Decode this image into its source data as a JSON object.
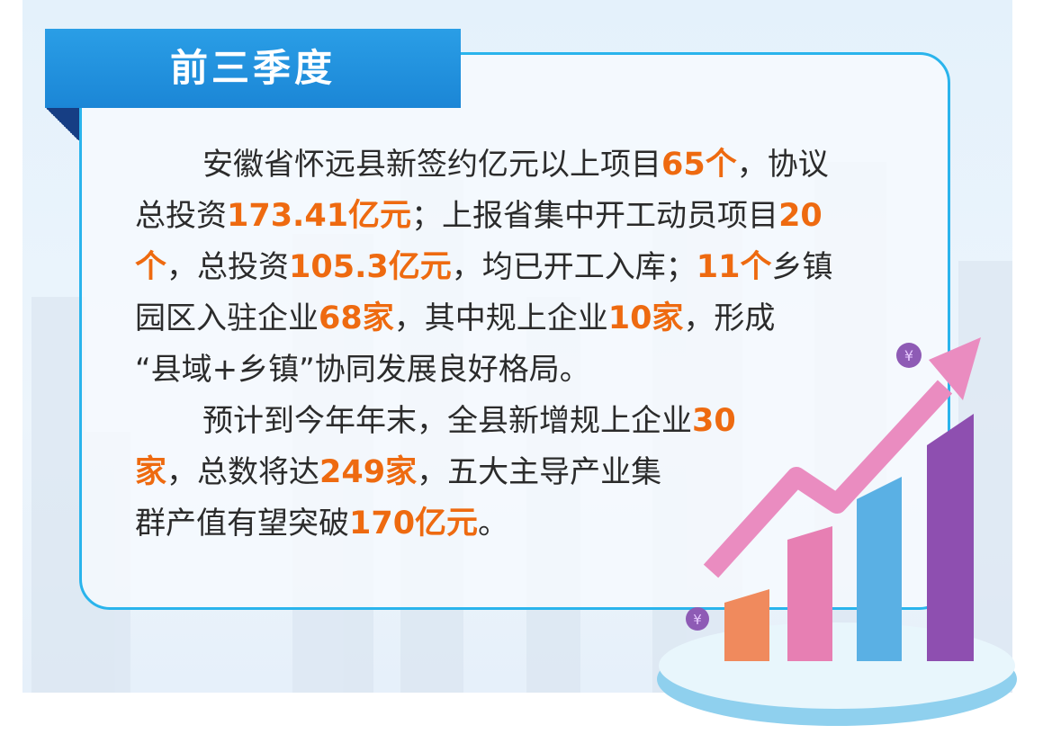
{
  "title": "前三季度",
  "colors": {
    "accent_blue": "#1b86d6",
    "border_cyan": "#2ab4ec",
    "highlight_orange": "#ee6a10",
    "text": "#2b2b2b"
  },
  "lines": [
    {
      "indent": true,
      "segments": [
        {
          "t": "安徽省怀远县新签约亿元以上项目"
        },
        {
          "t": "65个",
          "hl": true
        },
        {
          "t": "，协议"
        }
      ]
    },
    {
      "segments": [
        {
          "t": "总投资"
        },
        {
          "t": "173.41亿元",
          "hl": true
        },
        {
          "t": "；上报省集中开工动员项目"
        },
        {
          "t": "20",
          "hl": true
        }
      ]
    },
    {
      "segments": [
        {
          "t": "个",
          "hl": true
        },
        {
          "t": "，总投资"
        },
        {
          "t": "105.3亿元",
          "hl": true
        },
        {
          "t": "，均已开工入库；"
        },
        {
          "t": "11个",
          "hl": true
        },
        {
          "t": "乡镇"
        }
      ]
    },
    {
      "segments": [
        {
          "t": "园区入驻企业"
        },
        {
          "t": "68家",
          "hl": true
        },
        {
          "t": "，其中规上企业"
        },
        {
          "t": "10家",
          "hl": true
        },
        {
          "t": "，形成"
        }
      ]
    },
    {
      "segments": [
        {
          "t": "“县域+乡镇”协同发展良好格局。"
        }
      ]
    },
    {
      "indent": true,
      "segments": [
        {
          "t": "预计到今年年末，全县新增规上企业"
        },
        {
          "t": "30",
          "hl": true
        }
      ]
    },
    {
      "segments": [
        {
          "t": "家",
          "hl": true
        },
        {
          "t": "，总数将达"
        },
        {
          "t": "249家",
          "hl": true
        },
        {
          "t": "，五大主导产业集"
        }
      ]
    },
    {
      "segments": [
        {
          "t": "群产值有望突破"
        },
        {
          "t": "170亿元",
          "hl": true
        },
        {
          "t": "。"
        }
      ]
    }
  ],
  "illustration": {
    "icons": [
      "yuan-coin-icon",
      "yuan-coin-icon"
    ],
    "bar_colors": [
      "#f08a5d",
      "#e77fb3",
      "#5ab0e4",
      "#8e4fb0"
    ],
    "arrow_color": "#ea8cc0"
  }
}
